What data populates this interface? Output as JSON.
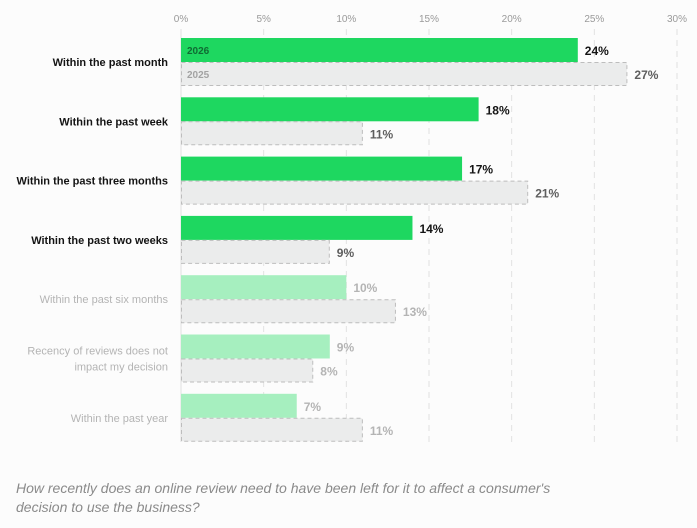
{
  "chart_data": {
    "type": "bar",
    "orientation": "horizontal",
    "categories": [
      "Within the past month",
      "Within the past week",
      "Within the past three months",
      "Within the past two weeks",
      "Within the past six months",
      "Recency of reviews does not impact my decision",
      "Within the past year"
    ],
    "category_emphasis": [
      true,
      true,
      true,
      true,
      false,
      false,
      false
    ],
    "series": [
      {
        "name": "2026",
        "values": [
          24,
          18,
          17,
          14,
          10,
          9,
          7
        ]
      },
      {
        "name": "2025",
        "values": [
          27,
          11,
          21,
          9,
          13,
          8,
          11
        ]
      }
    ],
    "xlim": [
      0,
      30
    ],
    "xticks": [
      "0%",
      "5%",
      "10%",
      "15%",
      "20%",
      "25%",
      "30%"
    ],
    "value_suffix": "%",
    "grid": true,
    "legend": "inside-first-bars",
    "title": "",
    "xlabel": "",
    "ylabel": "",
    "colors": {
      "series_2026": "#1ed760",
      "series_2026_muted": "#a6efbf",
      "series_2025_fill": "#ebecec",
      "series_2025_stroke": "#bdbdbd",
      "label_strong": "#141414",
      "label_muted": "#b4b4b4",
      "value_2025_strong": "#5e5e5e",
      "tick": "#9a9a9a",
      "grid": "#e1e1e1"
    }
  },
  "caption": "How recently does an online review need to have been left for it to affect a consumer's decision to use the business?"
}
